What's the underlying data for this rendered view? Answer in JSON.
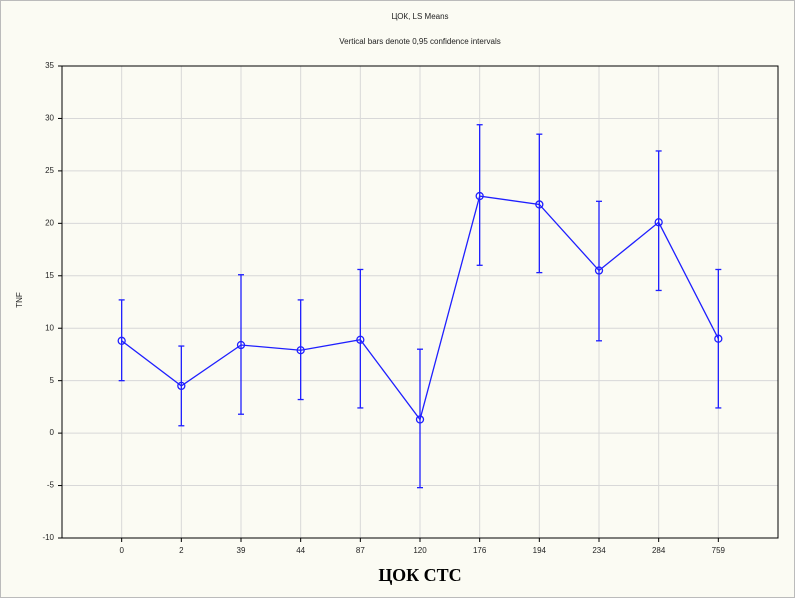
{
  "chart_data": {
    "type": "line",
    "title": "ЦОК, LS Means",
    "subtitle": "Vertical bars denote 0,95 confidence intervals",
    "x_label": "ЦОК СТС",
    "y_label": "TNF",
    "categories": [
      "0",
      "2",
      "39",
      "44",
      "87",
      "120",
      "176",
      "194",
      "234",
      "284",
      "759"
    ],
    "series": [
      {
        "name": "TNF",
        "color": "#1f1fff",
        "values": [
          8.8,
          4.5,
          8.4,
          7.9,
          8.9,
          1.3,
          22.6,
          21.8,
          15.5,
          20.1,
          9.0
        ],
        "lower": [
          5.0,
          0.7,
          1.8,
          3.2,
          2.4,
          -5.2,
          16.0,
          15.3,
          8.8,
          13.6,
          2.4
        ],
        "upper": [
          12.7,
          8.3,
          15.1,
          12.7,
          15.6,
          8.0,
          29.4,
          28.5,
          22.1,
          26.9,
          15.6
        ]
      }
    ],
    "ylim": [
      -10,
      35
    ],
    "yticks": [
      -10,
      -5,
      0,
      5,
      10,
      15,
      20,
      25,
      30,
      35
    ],
    "grid": true
  }
}
